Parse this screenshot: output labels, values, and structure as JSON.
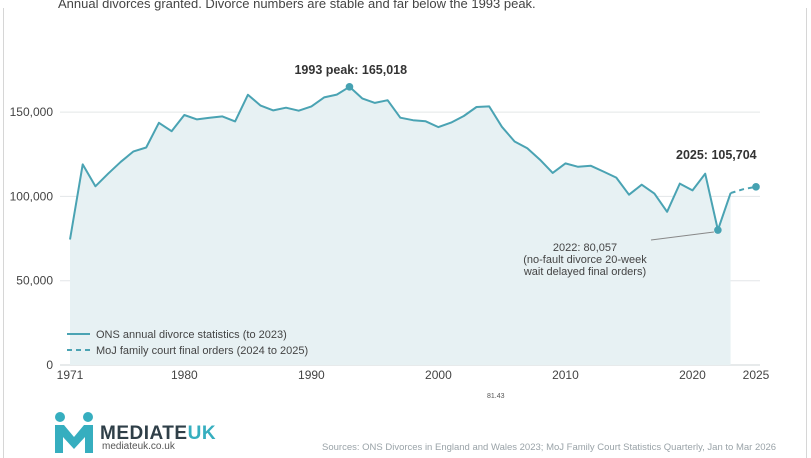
{
  "subtitle": "Annual divorces granted. Divorce numbers are stable and far below the 1993 peak.",
  "center_note": "81.43",
  "logo": {
    "brand_main": "MEDIATE",
    "brand_accent": "UK",
    "url": "mediateuk.co.uk"
  },
  "sources": "Sources: ONS Divorces in England and Wales 2023; MoJ Family Court Statistics Quarterly, Jan to Mar 2026",
  "colors": {
    "line": "#4aa3b3",
    "area": "#e7f1f3",
    "marker": "#46a2b2"
  },
  "chart_data": {
    "type": "line",
    "title": "",
    "xlabel": "",
    "ylabel": "",
    "xlim": [
      1971,
      2025
    ],
    "ylim": [
      0,
      175000
    ],
    "grid": true,
    "legend_placement": "bottom-left",
    "x_ticks": [
      {
        "value": 1971,
        "label": "1971"
      },
      {
        "value": 1980,
        "label": "1980"
      },
      {
        "value": 1990,
        "label": "1990"
      },
      {
        "value": 2000,
        "label": "2000"
      },
      {
        "value": 2010,
        "label": "2010"
      },
      {
        "value": 2020,
        "label": "2020"
      },
      {
        "value": 2025,
        "label": "2025"
      }
    ],
    "y_ticks": [
      {
        "value": 0,
        "label": "0"
      },
      {
        "value": 50000,
        "label": "50,000"
      },
      {
        "value": 100000,
        "label": "100,000"
      },
      {
        "value": 150000,
        "label": "150,000"
      }
    ],
    "series": [
      {
        "name": "ONS annual divorce statistics (to 2023)",
        "style": "solid",
        "x": [
          1971,
          1972,
          1973,
          1974,
          1975,
          1976,
          1977,
          1978,
          1979,
          1980,
          1981,
          1982,
          1983,
          1984,
          1985,
          1986,
          1987,
          1988,
          1989,
          1990,
          1991,
          1992,
          1993,
          1994,
          1995,
          1996,
          1997,
          1998,
          1999,
          2000,
          2001,
          2002,
          2003,
          2004,
          2005,
          2006,
          2007,
          2008,
          2009,
          2010,
          2011,
          2012,
          2013,
          2014,
          2015,
          2016,
          2017,
          2018,
          2019,
          2020,
          2021,
          2022,
          2023
        ],
        "values": [
          74437,
          119025,
          106003,
          113500,
          120522,
          126694,
          129053,
          143667,
          138706,
          148301,
          145713,
          146698,
          147479,
          144501,
          160300,
          153903,
          151007,
          152633,
          150872,
          153386,
          158745,
          160385,
          165018,
          158175,
          155499,
          157107,
          146689,
          145214,
          144556,
          141135,
          143818,
          147735,
          153065,
          153399,
          141322,
          132562,
          128534,
          121779,
          113949,
          119589,
          117558,
          118140,
          114720,
          111169,
          101055,
          106959,
          101669,
          90871,
          107599,
          103592,
          113505,
          80057,
          102000
        ]
      },
      {
        "name": "MoJ family court final orders (2024 to 2025)",
        "style": "dashed",
        "x": [
          2023,
          2024,
          2025
        ],
        "values": [
          102000,
          104300,
          105704
        ]
      }
    ],
    "annotations": [
      {
        "x": 1993,
        "y": 165018,
        "label": "1993 peak: 165,018"
      },
      {
        "x": 2025,
        "y": 105704,
        "label": "2025: 105,704"
      },
      {
        "x": 2022,
        "y": 80057,
        "lines": [
          "2022: 80,057",
          "(no-fault divorce 20-week",
          "wait delayed final orders)"
        ]
      }
    ]
  }
}
